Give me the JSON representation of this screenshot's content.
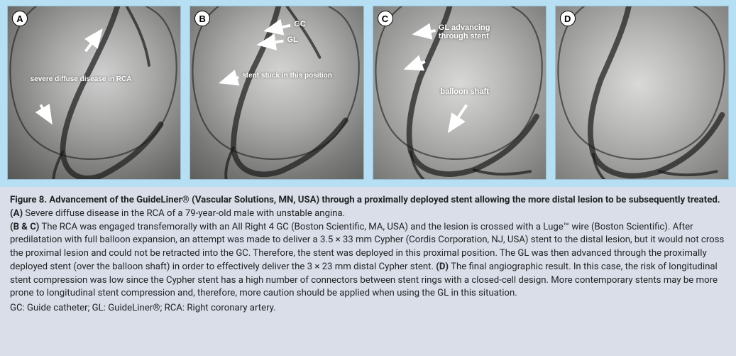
{
  "figure": {
    "panels_bg_color": "#b6dff3",
    "caption_bg_color": "#d9dee8",
    "text_color": "#222326",
    "panel_badge_bg": "#ffffff",
    "panel_badge_border": "#000000",
    "panel_badge_text": "#000000",
    "annotation_text_color": "#ffffff",
    "arrow_color": "#ffffff",
    "panels": [
      {
        "id": "A",
        "gradient": "radial-gradient(120% 120% at 55% 40%, #cfd0cf 0%, #a7a8a6 25%, #6c6d6b 55%, #424341 80%, #2a2b29 100%)",
        "annotations": [
          {
            "text": "severe diffuse disease in RCA",
            "fontsize": 10,
            "left_pct": 13,
            "top_pct": 40
          }
        ],
        "arrows": [
          {
            "x1_pct": 45,
            "y1_pct": 26,
            "x2_pct": 54,
            "y2_pct": 14
          },
          {
            "x1_pct": 19,
            "y1_pct": 57,
            "x2_pct": 25,
            "y2_pct": 67
          }
        ]
      },
      {
        "id": "B",
        "gradient": "radial-gradient(120% 120% at 52% 38%, #d3d4d2 0%, #aeafad 25%, #7a7b79 50%, #4d4e4c 78%, #333432 100%)",
        "annotations": [
          {
            "text": "GC",
            "fontsize": 11,
            "left_pct": 60,
            "top_pct": 8
          },
          {
            "text": "GL",
            "fontsize": 11,
            "left_pct": 56,
            "top_pct": 17
          },
          {
            "text": "stent stuck in this position",
            "fontsize": 10,
            "left_pct": 30,
            "top_pct": 38
          }
        ],
        "arrows": [
          {
            "x1_pct": 58,
            "y1_pct": 11,
            "x2_pct": 44,
            "y2_pct": 14
          },
          {
            "x1_pct": 54,
            "y1_pct": 20,
            "x2_pct": 40,
            "y2_pct": 22
          },
          {
            "x1_pct": 28,
            "y1_pct": 41,
            "x2_pct": 18,
            "y2_pct": 44
          }
        ]
      },
      {
        "id": "C",
        "gradient": "radial-gradient(130% 130% at 50% 45%, #d8d9d7 0%, #b6b7b5 22%, #8a8b89 46%, #5a5b59 74%, #3a3b39 100%)",
        "annotations": [
          {
            "text": "GL advancing\nthrough stent",
            "fontsize": 11,
            "left_pct": 38,
            "top_pct": 10
          },
          {
            "text": "balloon shaft",
            "fontsize": 11,
            "left_pct": 39,
            "top_pct": 47
          }
        ],
        "arrows": [
          {
            "x1_pct": 36,
            "y1_pct": 14,
            "x2_pct": 24,
            "y2_pct": 16
          },
          {
            "x1_pct": 30,
            "y1_pct": 32,
            "x2_pct": 19,
            "y2_pct": 36
          },
          {
            "x1_pct": 54,
            "y1_pct": 57,
            "x2_pct": 44,
            "y2_pct": 72
          }
        ]
      },
      {
        "id": "D",
        "gradient": "radial-gradient(130% 130% at 48% 45%, #d9dad8 0%, #b8b9b7 22%, #8e8f8d 46%, #5f605e 74%, #3e3f3d 100%)",
        "annotations": [],
        "arrows": []
      }
    ],
    "caption": {
      "title_bold": "Figure 8. Advancement of the GuideLiner® (Vascular Solutions, MN, USA) through a proximally deployed stent allowing the more distal lesion to be subsequently treated. (A)",
      "title_rest": " Severe diffuse disease in the RCA of a 79-year-old male with unstable angina.",
      "bc_label": "(B & C)",
      "bc_text": " The RCA was engaged transfemorally with an All Right 4 GC (Boston Scientific, MA, USA) and the lesion is crossed with a Luge™ wire (Boston Scientific). After predilatation with full balloon expansion, an attempt was made to deliver a 3.5 × 33 mm Cypher (Cordis Corporation, NJ, USA) stent to the distal lesion, but it would not cross the proximal lesion and could not be retracted into the GC. Therefore, the stent was deployed in this proximal position. The GL was then advanced through the proximally deployed stent (over the balloon shaft) in order to effectively deliver the 3 × 23 mm distal Cypher stent. ",
      "d_label": "(D)",
      "d_text": " The final angiographic result. In this case, the risk of longitudinal stent compression was low since the Cypher stent has a high number of connectors between stent rings with a closed-cell design. More contemporary stents may be more prone to longitudinal stent compression and, therefore, more caution should be applied when using the GL in this situation.",
      "abbreviations": "GC: Guide catheter; GL: GuideLiner®; RCA: Right coronary artery."
    }
  }
}
